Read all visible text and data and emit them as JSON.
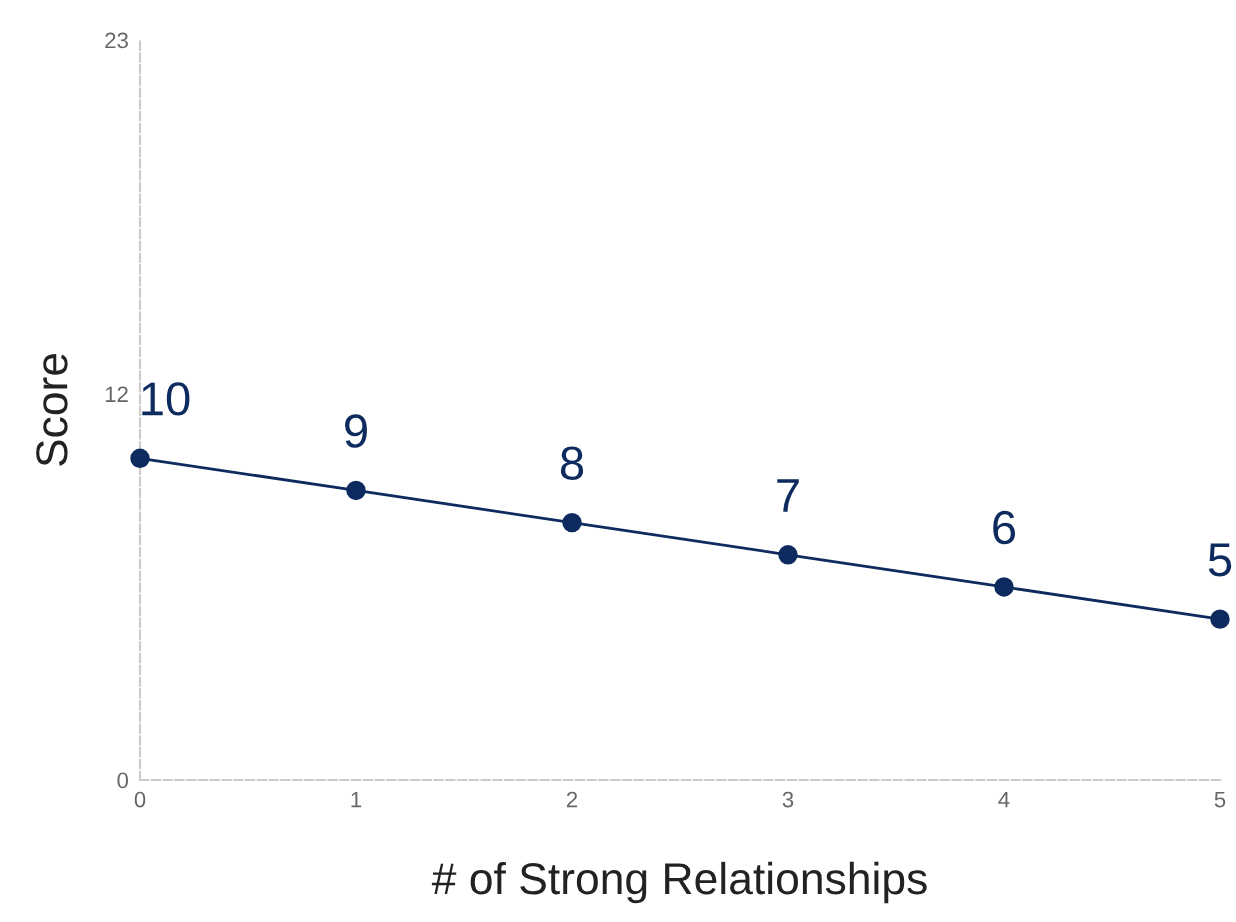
{
  "chart_data": {
    "type": "line",
    "xlabel": "# of Strong Relationships",
    "ylabel": "Score",
    "x": [
      0,
      1,
      2,
      3,
      4,
      5
    ],
    "series": [
      {
        "color": "#0d2b5e",
        "values": [
          10,
          9,
          8,
          7,
          6,
          5
        ]
      }
    ],
    "xlim": [
      0,
      5
    ],
    "xticks": [
      0,
      1,
      2,
      3,
      4,
      5
    ],
    "ylim": [
      0,
      23
    ],
    "yticks": [
      0,
      12,
      23
    ],
    "marker": "circle",
    "line_style": "solid",
    "data_labels": true,
    "grid": false
  }
}
